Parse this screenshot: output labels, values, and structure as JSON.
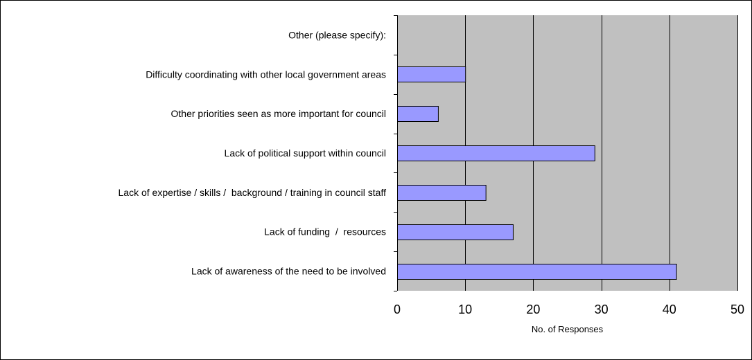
{
  "chart_data": {
    "type": "bar",
    "orientation": "horizontal",
    "title": "",
    "xlabel": "No. of Responses",
    "ylabel": "",
    "categories": [
      "Other (please specify):",
      "Difficulty coordinating with other local government areas",
      "Other priorities seen as more important for council",
      "Lack of political support within council",
      "Lack of expertise / skills /  background / training in council staff",
      "Lack of funding  /  resources",
      "Lack of awareness of the need to be involved"
    ],
    "values": [
      0,
      10,
      6,
      29,
      13,
      17,
      41
    ],
    "xlim": [
      0,
      50
    ],
    "xticks": [
      "0",
      "10",
      "20",
      "30",
      "40",
      "50"
    ],
    "grid": "vertical",
    "legend": "none",
    "colors": {
      "bar_fill": "#9999ff",
      "bar_stroke": "#000000",
      "plot_background": "#c0c0c0",
      "gridline": "#000000",
      "frame": "#000000"
    }
  }
}
